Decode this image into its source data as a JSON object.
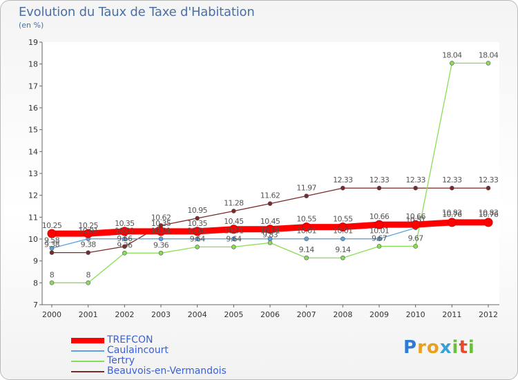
{
  "header": {
    "title": "Evolution du Taux de Taxe d'Habitation",
    "unit": "(en %)"
  },
  "logo": {
    "letters": [
      "P",
      "r",
      "o",
      "x",
      "i",
      "t",
      "i"
    ],
    "colors": [
      "#2e7bd6",
      "#e8a020",
      "#e8a020",
      "#3aa0d8",
      "#6cbf3a",
      "#e84a2a",
      "#6cbf3a"
    ]
  },
  "chart_data": {
    "type": "line",
    "x": [
      "2000",
      "2001",
      "2002",
      "2003",
      "2004",
      "2005",
      "2006",
      "2007",
      "2008",
      "2009",
      "2010",
      "2011",
      "2012"
    ],
    "ylim": [
      7,
      19
    ],
    "yticks": [
      "7",
      "8",
      "9",
      "10",
      "11",
      "12",
      "13",
      "14",
      "15",
      "16",
      "17",
      "18",
      "19"
    ],
    "grid": false,
    "legend_position": "bottom-left",
    "series": [
      {
        "name": "TREFCON",
        "color": "#ff0000",
        "values": [
          10.25,
          10.25,
          10.35,
          10.35,
          10.35,
          10.45,
          10.45,
          10.55,
          10.55,
          10.66,
          10.66,
          10.76,
          10.76
        ],
        "labels": [
          "10.25",
          "10.25",
          "10.35",
          "10.35",
          "10.35",
          "10.45",
          "10.45",
          "10.55",
          "10.55",
          "10.66",
          "10.66",
          "10.76",
          "10.76"
        ]
      },
      {
        "name": "Caulaincourt",
        "color": "#5ba3e0",
        "values": [
          9.58,
          10.01,
          10.01,
          10.01,
          10.01,
          10.01,
          10.01,
          10.01,
          10.01,
          10.01,
          10.51,
          10.83,
          10.83
        ],
        "labels": [
          "9.58",
          "10.01",
          "10.01",
          "10.01",
          "10.01",
          "10.01",
          "10.01",
          "10.01",
          "10.01",
          "10.01",
          "10.51",
          "10.83",
          "10.83"
        ]
      },
      {
        "name": "Tertry",
        "color": "#88dd55",
        "values": [
          8,
          8,
          9.36,
          9.36,
          9.64,
          9.64,
          9.83,
          9.14,
          9.14,
          9.67,
          9.67,
          18.04,
          18.04
        ],
        "labels": [
          "8",
          "8",
          "9.36",
          "9.36",
          "9.64",
          "9.64",
          "9.83",
          "9.14",
          "9.14",
          "9.67",
          "9.67",
          "18.04",
          "18.04"
        ]
      },
      {
        "name": "Beauvois-en-Vermandois",
        "color": "#7a2a2a",
        "values": [
          9.38,
          9.38,
          9.66,
          10.62,
          10.95,
          11.28,
          11.62,
          11.97,
          12.33,
          12.33,
          12.33,
          12.33,
          12.33
        ],
        "labels": [
          "9.38",
          "9.38",
          "9.66",
          "10.62",
          "10.95",
          "11.28",
          "11.62",
          "11.97",
          "12.33",
          "12.33",
          "12.33",
          "12.33",
          "12.33"
        ]
      }
    ]
  }
}
